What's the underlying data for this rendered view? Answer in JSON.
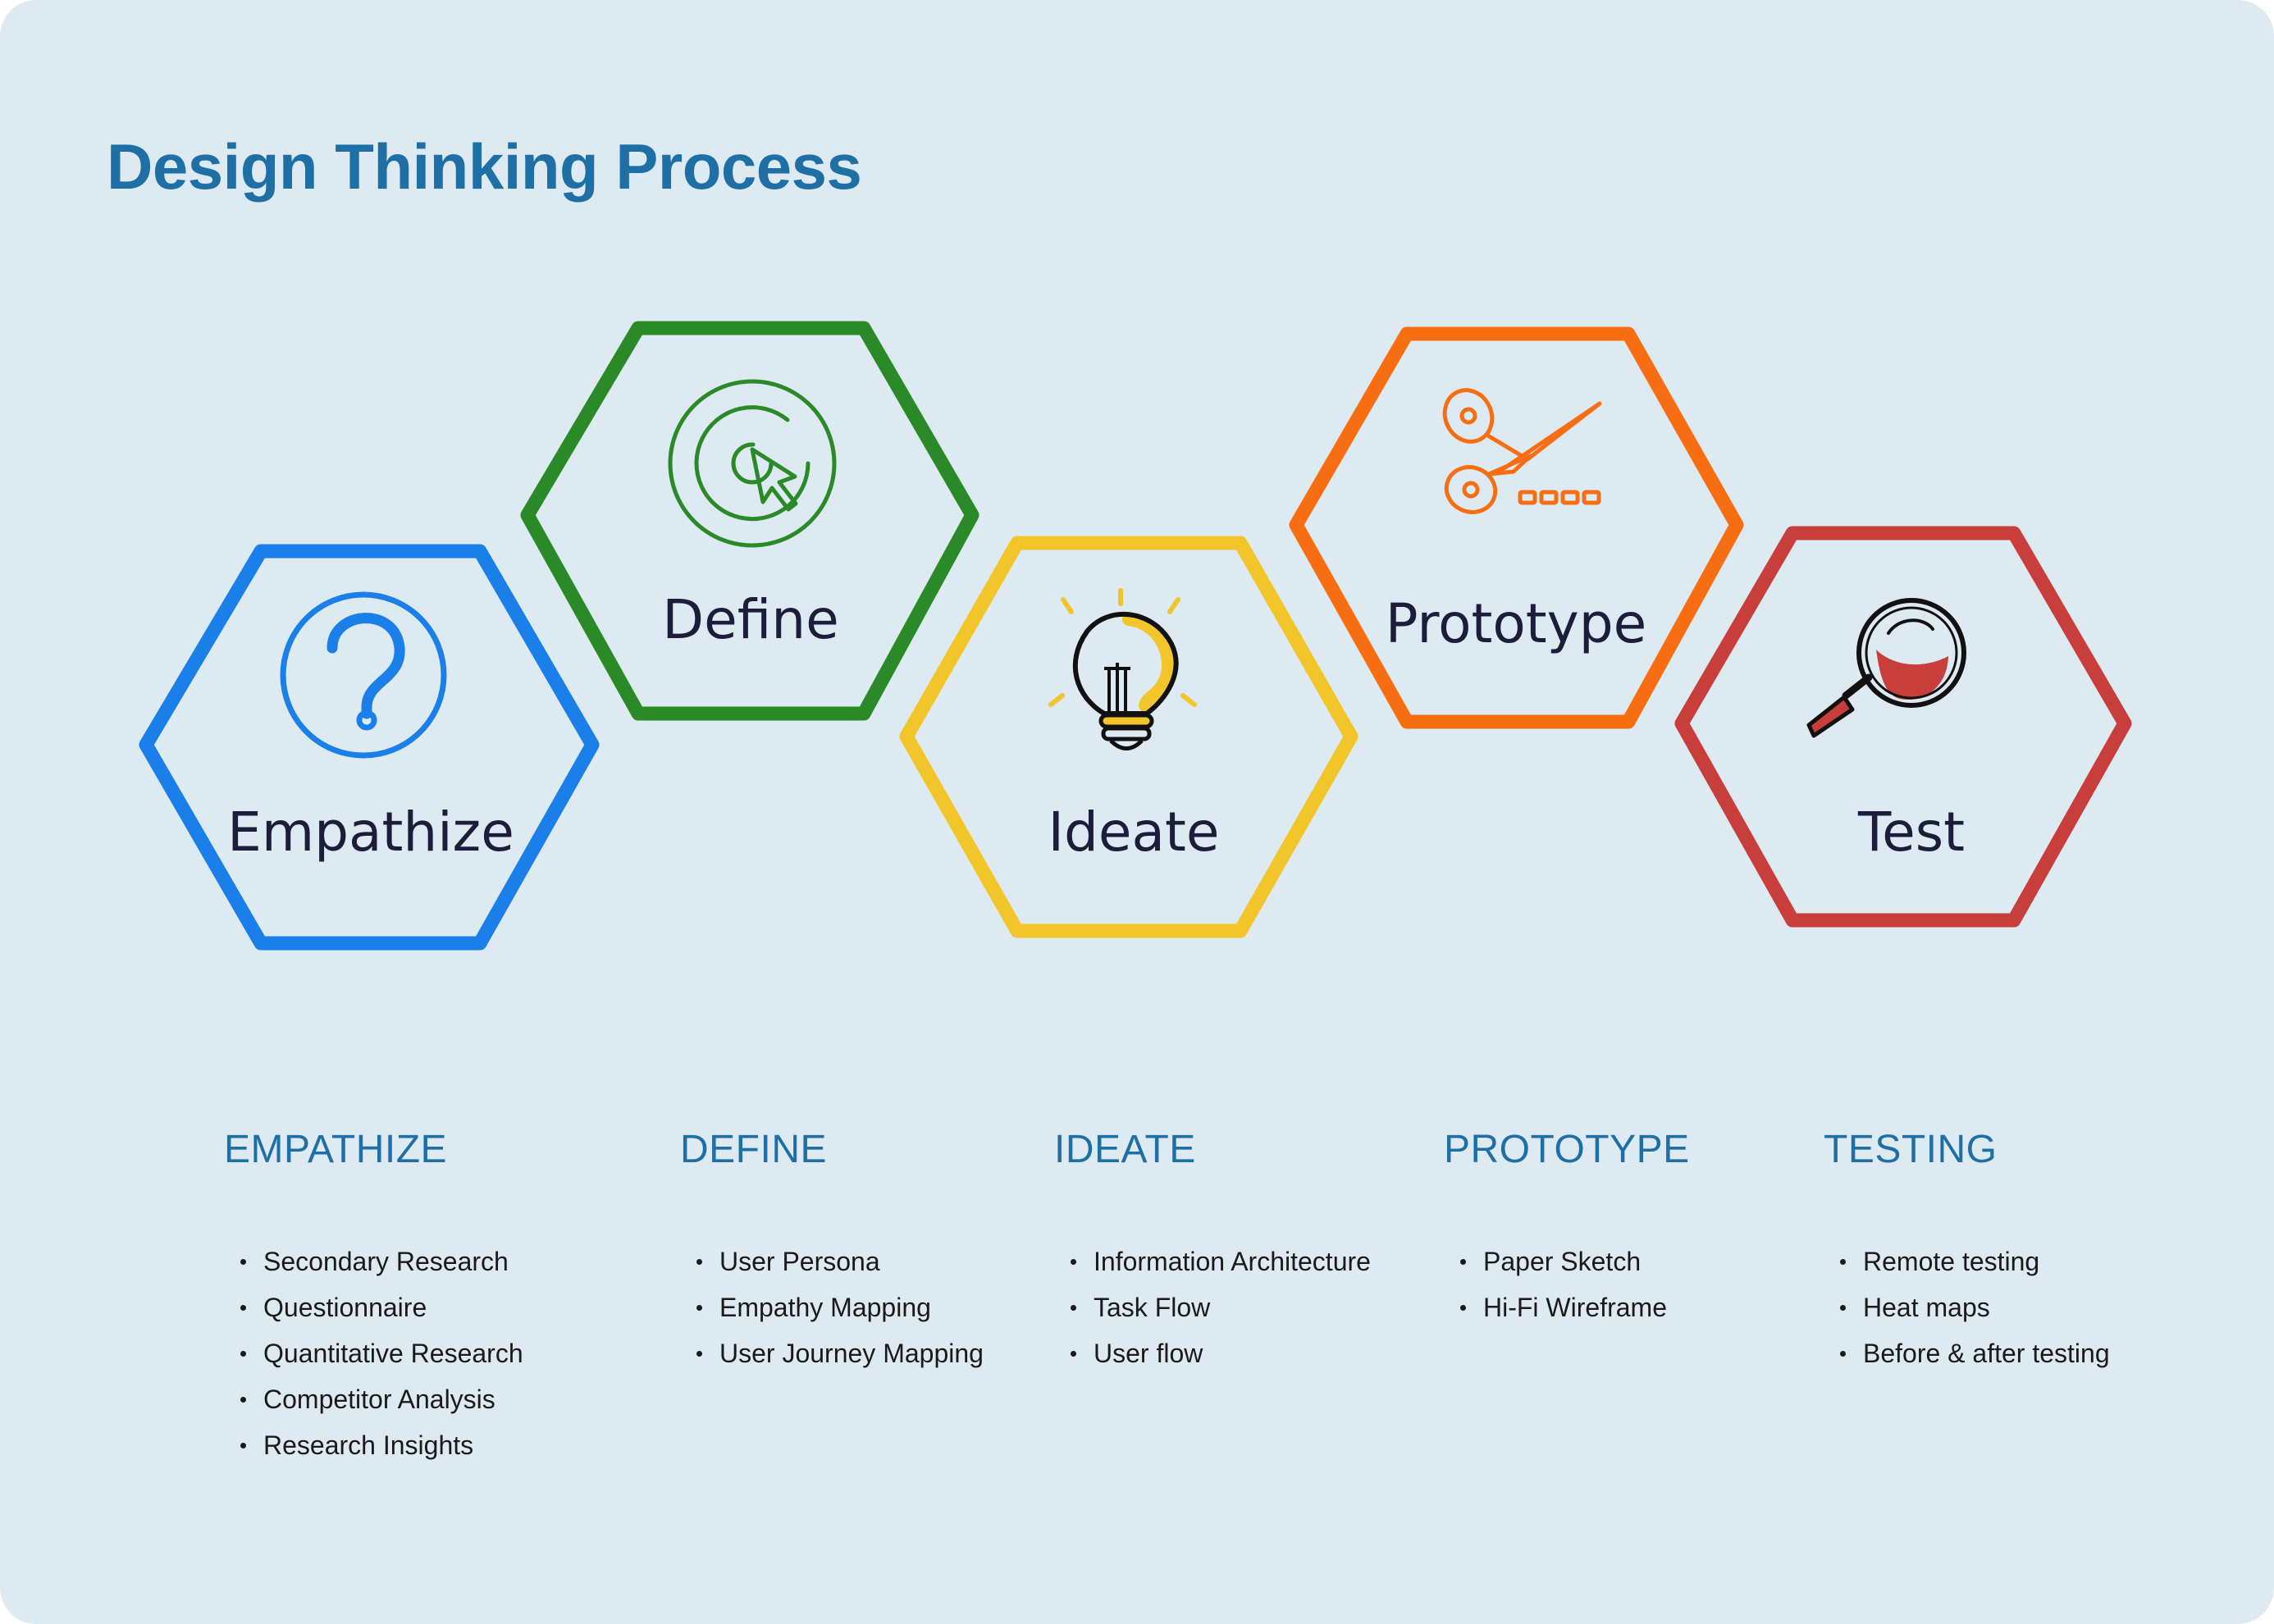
{
  "title": "Design Thinking Process",
  "colors": {
    "title": "#1d6fa5",
    "heading": "#1d6fa5",
    "empathize": "#1a7fe8",
    "define": "#2a8a27",
    "ideate": "#f2c62a",
    "prototype": "#f76e12",
    "test": "#c83e3b"
  },
  "stages": [
    {
      "label": "Empathize",
      "icon": "question-mark-icon"
    },
    {
      "label": "Define",
      "icon": "target-cursor-icon"
    },
    {
      "label": "Ideate",
      "icon": "lightbulb-icon"
    },
    {
      "label": "Prototype",
      "icon": "scissors-icon"
    },
    {
      "label": "Test",
      "icon": "magnifying-glass-icon"
    }
  ],
  "columns": [
    {
      "heading": "EMPATHIZE",
      "items": [
        "Secondary Research",
        "Questionnaire",
        "Quantitative Research",
        "Competitor Analysis",
        "Research Insights"
      ]
    },
    {
      "heading": "DEFINE",
      "items": [
        "User Persona",
        "Empathy Mapping",
        "User Journey Mapping"
      ]
    },
    {
      "heading": "IDEATE",
      "items": [
        "Information Architecture",
        "Task Flow",
        "User flow"
      ]
    },
    {
      "heading": "PROTOTYPE",
      "items": [
        "Paper Sketch",
        "Hi-Fi Wireframe"
      ]
    },
    {
      "heading": "TESTING",
      "items": [
        "Remote testing",
        "Heat maps",
        "Before & after testing"
      ]
    }
  ]
}
